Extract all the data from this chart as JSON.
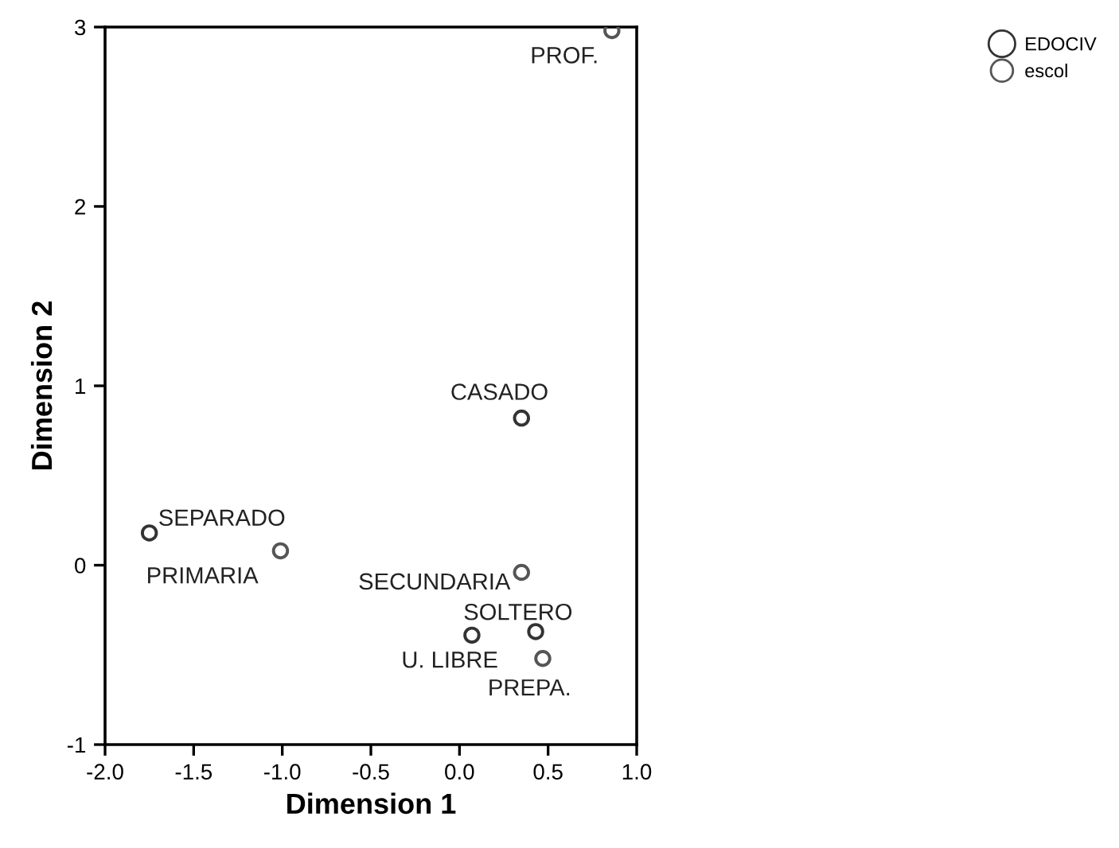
{
  "chart_data": {
    "type": "scatter",
    "xlabel": "Dimension 1",
    "ylabel": "Dimension 2",
    "xlim": [
      -2.0,
      1.0
    ],
    "xticks": [
      {
        "value": -2.0,
        "label": "-2.0"
      },
      {
        "value": -1.5,
        "label": "-1.5"
      },
      {
        "value": -1.0,
        "label": "-1.0"
      },
      {
        "value": -0.5,
        "label": "-0.5"
      },
      {
        "value": 0.0,
        "label": "0.0"
      },
      {
        "value": 0.5,
        "label": "0.5"
      },
      {
        "value": 1.0,
        "label": "1.0"
      }
    ],
    "ylim": [
      -1,
      3
    ],
    "yticks": [
      -1,
      0,
      1,
      2,
      3
    ],
    "grid": false,
    "legend": "top right",
    "marker": "circle",
    "series": [
      {
        "name": "EDOCIV",
        "color": "#333333",
        "x": [
          -1.75,
          0.35,
          0.43,
          0.07
        ],
        "values": [
          0.18,
          0.82,
          -0.37,
          -0.39
        ]
      },
      {
        "name": "escol",
        "color": "#555555",
        "x": [
          -1.01,
          0.35,
          0.47,
          0.86
        ],
        "values": [
          0.08,
          -0.04,
          -0.52,
          2.98
        ]
      }
    ],
    "annotations": [
      {
        "text": "SEPARADO",
        "x": -1.75,
        "y": 0.18
      },
      {
        "text": "CASADO",
        "x": 0.35,
        "y": 0.82
      },
      {
        "text": "SOLTERO",
        "x": 0.43,
        "y": -0.37
      },
      {
        "text": "U. LIBRE",
        "x": 0.07,
        "y": -0.39
      },
      {
        "text": "PRIMARIA",
        "x": -1.01,
        "y": 0.08
      },
      {
        "text": "SECUNDARIA",
        "x": 0.35,
        "y": -0.04
      },
      {
        "text": "PREPA.",
        "x": 0.47,
        "y": -0.52
      },
      {
        "text": "PROF.",
        "x": 0.86,
        "y": 2.98
      }
    ]
  }
}
